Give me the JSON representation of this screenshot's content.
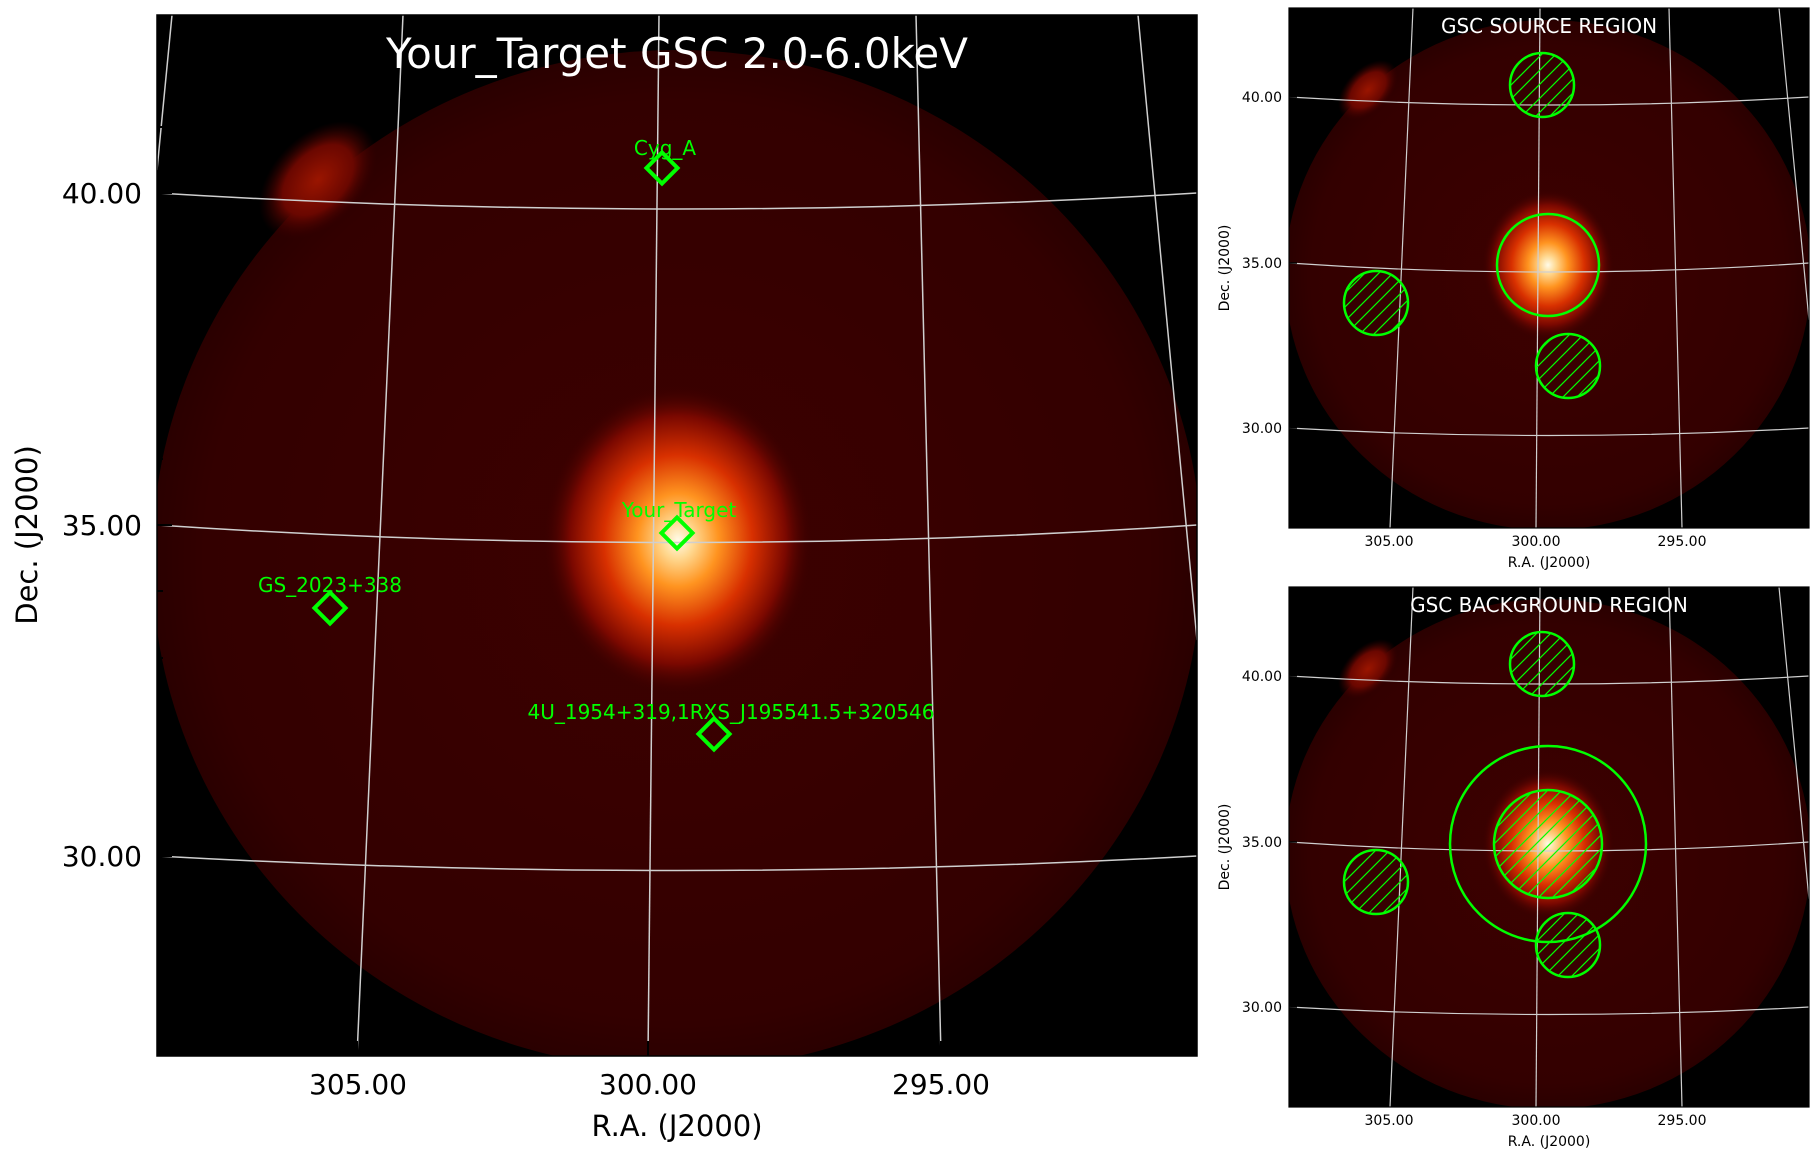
{
  "main_panel": {
    "title": "Your_Target GSC 2.0-6.0keV",
    "xlabel": "R.A. (J2000)",
    "ylabel": "Dec. (J2000)",
    "x_ticks": [
      "305.00",
      "300.00",
      "295.00"
    ],
    "y_ticks": [
      "40.00",
      "35.00",
      "30.00"
    ],
    "sources": [
      {
        "label": "Cyg_A",
        "ra": 299.8,
        "dec": 40.4
      },
      {
        "label": "Your_Target",
        "ra": 299.5,
        "dec": 34.9
      },
      {
        "label": "GS_2023+338",
        "ra": 305.4,
        "dec": 33.8
      },
      {
        "label": "4U_1954+319,1RXS_J195541.5+320546",
        "ra": 298.9,
        "dec": 31.9
      }
    ]
  },
  "source_panel": {
    "title": "GSC SOURCE REGION",
    "xlabel": "R.A. (J2000)",
    "ylabel": "Dec. (J2000)",
    "x_ticks": [
      "305.00",
      "300.00",
      "295.00"
    ],
    "y_ticks": [
      "40.00",
      "35.00",
      "30.00"
    ]
  },
  "background_panel": {
    "title": "GSC BACKGROUND REGION",
    "xlabel": "R.A. (J2000)",
    "ylabel": "Dec. (J2000)",
    "x_ticks": [
      "305.00",
      "300.00",
      "295.00"
    ],
    "y_ticks": [
      "40.00",
      "35.00",
      "30.00"
    ]
  },
  "colors": {
    "background": "#000000",
    "field": "#3a0000",
    "glow": "#ff7a10",
    "hot_spot": "#8a1000",
    "region": "#00ff00",
    "grid": "#cfcfcf",
    "title_text": "#ffffff"
  }
}
